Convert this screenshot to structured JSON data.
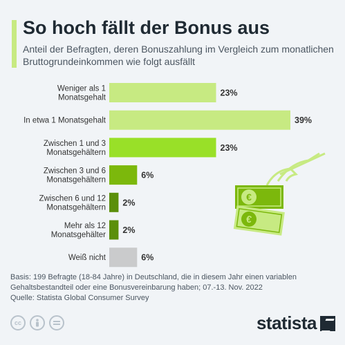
{
  "header": {
    "title": "So hoch fällt der Bonus aus",
    "subtitle": "Anteil der Befragten, deren Bonuszahlung im Vergleich zum monatlichen Bruttogrundeinkommen wie folgt ausfällt"
  },
  "chart_data": {
    "type": "bar",
    "orientation": "horizontal",
    "categories": [
      [
        "Weniger als 1",
        "Monatsgehalt"
      ],
      [
        "In etwa 1 Monatsgehalt"
      ],
      [
        "Zwischen 1 und 3",
        "Monatsgehältern"
      ],
      [
        "Zwischen 3 und 6",
        "Monatsgehältern"
      ],
      [
        "Zwischen 6 und 12",
        "Monatsgehältern"
      ],
      [
        "Mehr als 12",
        "Monatsgehälter"
      ],
      [
        "Weiß nicht"
      ]
    ],
    "values": [
      23,
      39,
      23,
      6,
      2,
      2,
      6
    ],
    "value_labels": [
      "23%",
      "39%",
      "23%",
      "6%",
      "2%",
      "2%",
      "6%"
    ],
    "bar_colors": [
      "#c7ea82",
      "#c7ea82",
      "#99e028",
      "#7cb80c",
      "#5b8f0b",
      "#5b8f0b",
      "#cacbcc"
    ],
    "xlim": [
      0,
      39
    ],
    "grid": false,
    "legend": "none"
  },
  "illustration": {
    "icon": "hand-holding-euro-bills-icon",
    "colors": [
      "#c7ea82",
      "#7cb80c"
    ]
  },
  "footer": {
    "basis": "Basis: 199 Befragte (18-84 Jahre) in Deutschland, die in diesem Jahr einen variablen",
    "basis_2": "Gehaltsbestandteil oder eine Bonusvereinbarung haben; 07.-13. Nov. 2022",
    "source": "Quelle: Statista Global Consumer Survey",
    "license_icons": [
      "cc-icon",
      "by-icon",
      "nd-icon"
    ],
    "brand": "statista"
  }
}
